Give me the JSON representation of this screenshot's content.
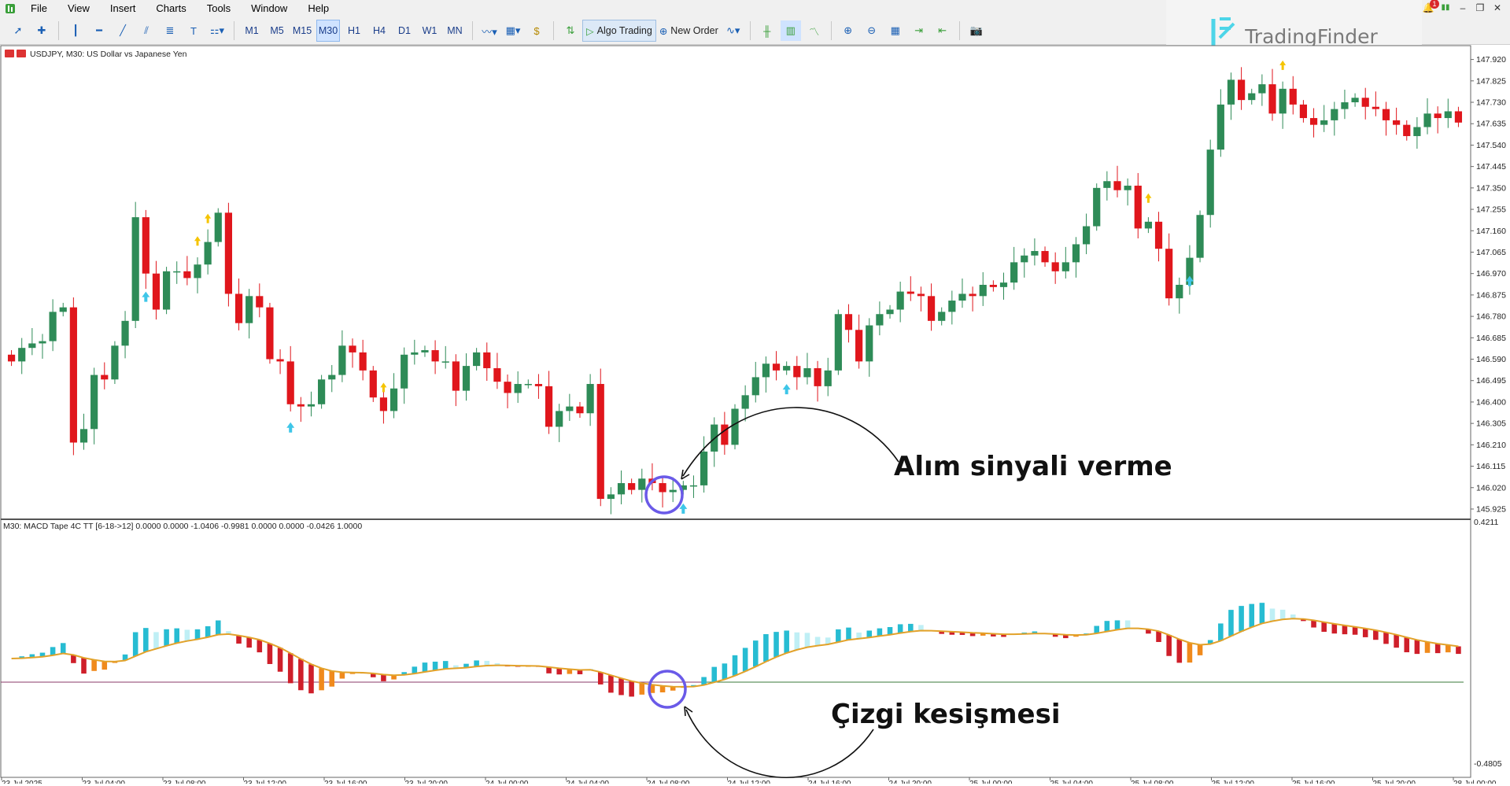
{
  "menu": [
    "File",
    "View",
    "Insert",
    "Charts",
    "Tools",
    "Window",
    "Help"
  ],
  "toolbar": {
    "timeframes": [
      "M1",
      "M5",
      "M15",
      "M30",
      "H1",
      "H4",
      "D1",
      "W1",
      "MN"
    ],
    "active_timeframe": "M30",
    "algo_label": "Algo Trading",
    "order_label": "New Order"
  },
  "brand": {
    "name": "TradingFinder",
    "color": "#4dd5e8"
  },
  "notification_count": "1",
  "chart": {
    "title": "USDJPY, M30:  US Dollar vs Japanese Yen",
    "indicator_title": "M30: MACD Tape 4C TT [6-18->12] 0.0000 0.0000 -1.0406 -0.9981 0.0000 0.0000 -0.0426 1.0000",
    "annotation_buy": "Alım sinyali verme",
    "annotation_cross": "Çizgi kesişmesi",
    "colors": {
      "bull": "#2e8b57",
      "bear": "#e0161c",
      "arrow": "#3ec6e8",
      "star": "#f5c400",
      "signal": "#e2a22a",
      "hist_cyan": "#27bcd2",
      "hist_red": "#cf1f2a",
      "hist_orange": "#f08a1c",
      "circle": "#5a7de8"
    }
  },
  "chart_data": {
    "type": "candlestick",
    "symbol": "USDJPY",
    "timeframe": "M30",
    "y_ticks": [
      "147.920",
      "147.825",
      "147.730",
      "147.635",
      "147.540",
      "147.445",
      "147.350",
      "147.255",
      "147.160",
      "147.065",
      "146.970",
      "146.875",
      "146.780",
      "146.685",
      "146.590",
      "146.495",
      "146.400",
      "146.305",
      "146.210",
      "146.115",
      "146.020",
      "145.925"
    ],
    "indicator_y_ticks": [
      "0.4211",
      "-0.4805"
    ],
    "x_ticks": [
      "23 Jul 2025",
      "23 Jul 04:00",
      "23 Jul 08:00",
      "23 Jul 12:00",
      "23 Jul 16:00",
      "23 Jul 20:00",
      "24 Jul 00:00",
      "24 Jul 04:00",
      "24 Jul 08:00",
      "24 Jul 12:00",
      "24 Jul 16:00",
      "24 Jul 20:00",
      "25 Jul 00:00",
      "25 Jul 04:00",
      "25 Jul 08:00",
      "25 Jul 12:00",
      "25 Jul 16:00",
      "25 Jul 20:00",
      "28 Jul 00:00"
    ],
    "ylim": [
      145.89,
      147.95
    ],
    "close": [
      146.58,
      146.64,
      146.66,
      146.67,
      146.8,
      146.82,
      146.22,
      146.28,
      146.52,
      146.5,
      146.65,
      146.76,
      147.22,
      146.97,
      146.81,
      146.98,
      146.98,
      146.95,
      147.01,
      147.11,
      147.24,
      146.88,
      146.75,
      146.87,
      146.82,
      146.59,
      146.58,
      146.39,
      146.38,
      146.39,
      146.5,
      146.52,
      146.65,
      146.62,
      146.54,
      146.42,
      146.36,
      146.46,
      146.61,
      146.62,
      146.63,
      146.58,
      146.58,
      146.45,
      146.56,
      146.62,
      146.55,
      146.49,
      146.44,
      146.48,
      146.48,
      146.47,
      146.29,
      146.36,
      146.38,
      146.35,
      146.48,
      145.97,
      145.99,
      146.04,
      146.01,
      146.06,
      146.04,
      146.0,
      146.01,
      146.03,
      146.03,
      146.18,
      146.3,
      146.21,
      146.37,
      146.43,
      146.51,
      146.57,
      146.54,
      146.56,
      146.51,
      146.55,
      146.47,
      146.54,
      146.79,
      146.72,
      146.58,
      146.74,
      146.79,
      146.81,
      146.89,
      146.88,
      146.87,
      146.76,
      146.8,
      146.85,
      146.88,
      146.87,
      146.92,
      146.91,
      146.93,
      147.02,
      147.05,
      147.07,
      147.02,
      146.98,
      147.02,
      147.1,
      147.18,
      147.35,
      147.38,
      147.34,
      147.36,
      147.17,
      147.2,
      147.08,
      146.86,
      146.92,
      147.04,
      147.23,
      147.52,
      147.72,
      147.83,
      147.74,
      147.77,
      147.81,
      147.68,
      147.79,
      147.72,
      147.66,
      147.63,
      147.65,
      147.7,
      147.73,
      147.75,
      147.71,
      147.7,
      147.65,
      147.63,
      147.58,
      147.62,
      147.68,
      147.66,
      147.69,
      147.64
    ]
  }
}
